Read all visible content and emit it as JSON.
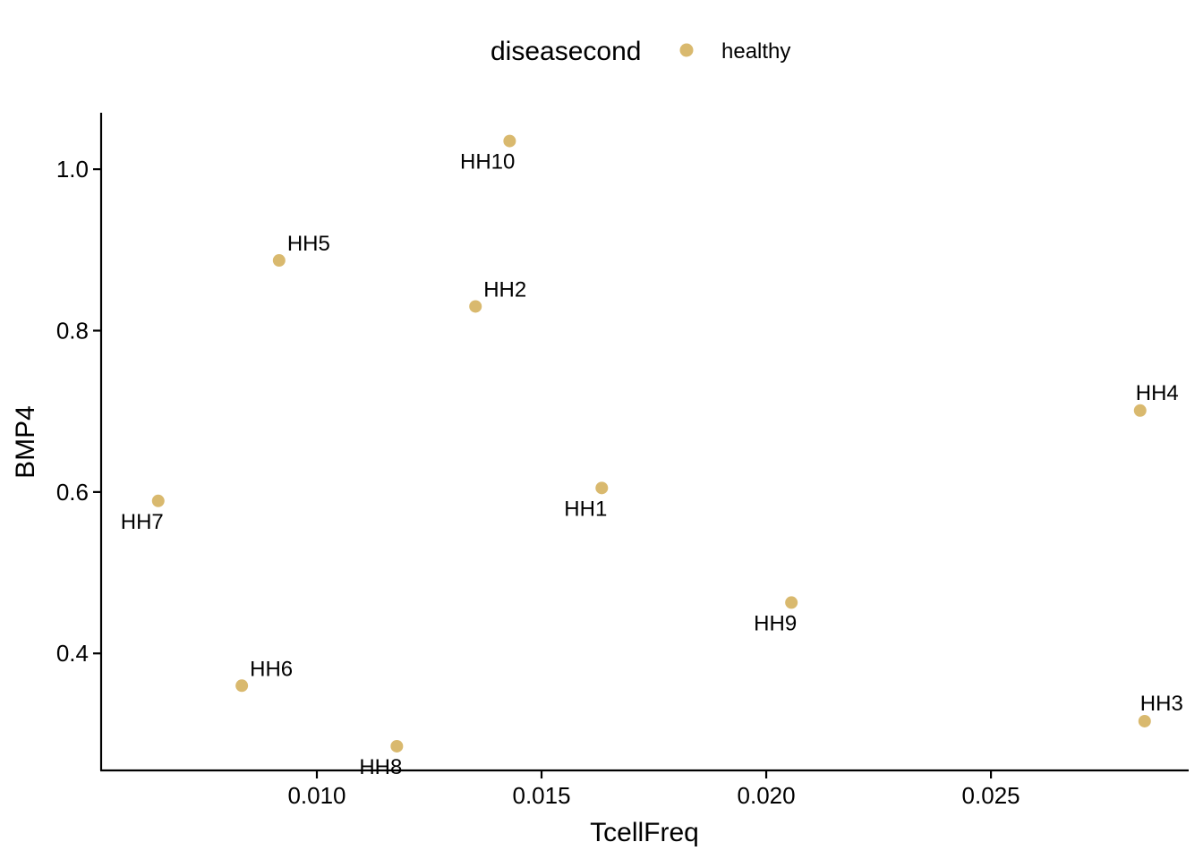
{
  "chart_data": {
    "type": "scatter",
    "title": "",
    "xlabel": "TcellFreq",
    "ylabel": "BMP4",
    "xlim": [
      0.0052,
      0.0294
    ],
    "ylim": [
      0.255,
      1.07
    ],
    "xticks": [
      0.01,
      0.015,
      0.02,
      0.025
    ],
    "xtick_labels": [
      "0.010",
      "0.015",
      "0.020",
      "0.025"
    ],
    "yticks": [
      0.4,
      0.6,
      0.8,
      1.0
    ],
    "ytick_labels": [
      "0.4",
      "0.6",
      "0.8",
      "1.0"
    ],
    "grid": false,
    "legend": {
      "position": "top",
      "title": "diseasecond",
      "entries": [
        {
          "label": "healthy",
          "color": "#D9B96E"
        }
      ]
    },
    "series": [
      {
        "name": "healthy",
        "color": "#D9B96E",
        "points": [
          {
            "label": "HH1",
            "x": 0.01634,
            "y": 0.605,
            "label_pos": "below-left"
          },
          {
            "label": "HH2",
            "x": 0.01353,
            "y": 0.83,
            "label_pos": "above-right"
          },
          {
            "label": "HH3",
            "x": 0.02842,
            "y": 0.316,
            "label_pos": "above"
          },
          {
            "label": "HH4",
            "x": 0.02832,
            "y": 0.701,
            "label_pos": "above"
          },
          {
            "label": "HH5",
            "x": 0.00916,
            "y": 0.887,
            "label_pos": "above-right"
          },
          {
            "label": "HH6",
            "x": 0.00833,
            "y": 0.36,
            "label_pos": "above-right"
          },
          {
            "label": "HH7",
            "x": 0.00647,
            "y": 0.589,
            "label_pos": "below-left"
          },
          {
            "label": "HH8",
            "x": 0.01178,
            "y": 0.285,
            "label_pos": "below-left"
          },
          {
            "label": "HH9",
            "x": 0.02056,
            "y": 0.463,
            "label_pos": "below-left"
          },
          {
            "label": "HH10",
            "x": 0.01429,
            "y": 1.035,
            "label_pos": "below-left"
          }
        ]
      }
    ]
  }
}
